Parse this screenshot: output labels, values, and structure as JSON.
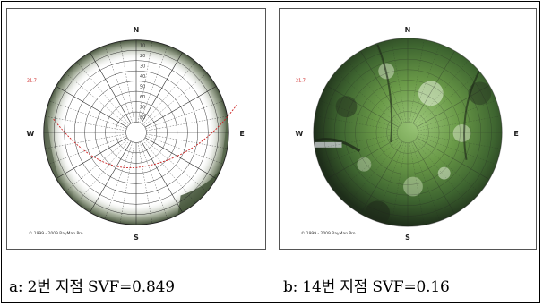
{
  "figure": {
    "panels": [
      {
        "id": "a",
        "caption": "a: 2번 지점 SVF=0.849",
        "directions": {
          "north": "N",
          "south": "S",
          "west": "W",
          "east": "E"
        },
        "ring_labels": [
          "10",
          "20",
          "30",
          "40",
          "50",
          "60",
          "70",
          "80"
        ],
        "side_label": "21.7",
        "copyright": "© 1999 - 2009 RayMan Pro",
        "sky_view_factor": 0.849,
        "sky_color": "#ffffff",
        "canopy_color": "#5a6a4a"
      },
      {
        "id": "b",
        "caption": "b: 14번 지점 SVF=0.16",
        "directions": {
          "north": "N",
          "south": "S",
          "west": "W",
          "east": "E"
        },
        "side_label": "21.7",
        "copyright": "© 1999 - 2009 RayMan Pro",
        "sky_view_factor": 0.16,
        "canopy_color": "#3f6a2a"
      }
    ]
  }
}
